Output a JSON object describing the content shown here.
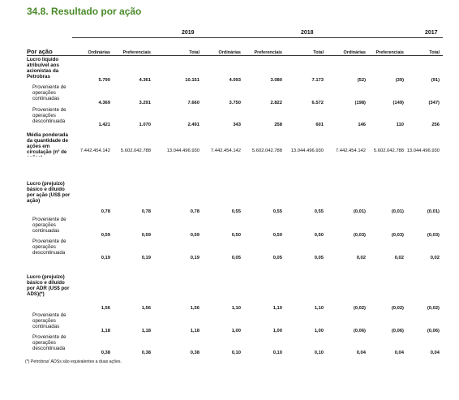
{
  "title": "34.8. Resultado por ação",
  "years": [
    "2019",
    "2018",
    "2017"
  ],
  "row_header": "Por ação",
  "col_headers": [
    "Ordinárias",
    "Preferenciais",
    "Total",
    "Ordinárias",
    "Preferenciais",
    "Total",
    "Ordinárias",
    "Preferenciais",
    "Total"
  ],
  "rows": [
    {
      "label": "Lucro líquido atribuível aos acionistas da Petrobras",
      "type": "main",
      "values": [
        "5.790",
        "4.361",
        "10.151",
        "4.093",
        "3.080",
        "7.173",
        "(52)",
        "(39)",
        "(91)"
      ]
    },
    {
      "label": "Proveniente de operações continuadas",
      "type": "sub",
      "values": [
        "4.369",
        "3.291",
        "7.660",
        "3.750",
        "2.822",
        "6.572",
        "(198)",
        "(149)",
        "(347)"
      ]
    },
    {
      "label": "Proveniente de operações descontinuada",
      "type": "sub",
      "values": [
        "1.421",
        "1.070",
        "2.491",
        "343",
        "258",
        "601",
        "146",
        "110",
        "256"
      ]
    },
    {
      "label": "Média ponderada da quantidade de ações em circulação (nº de ações)",
      "type": "main",
      "values": [
        "7.442.454.142",
        "5.602.042.788",
        "13.044.496.930",
        "7.442.454.142",
        "5.602.042.788",
        "13.044.496.930",
        "7.442.454.142",
        "5.602.042.788",
        "13.044.496.930"
      ]
    },
    {
      "label": "Lucro (prejuízo) básico e diluído por ação (US$ por ação)",
      "type": "main",
      "values": [
        "0,78",
        "0,78",
        "0,78",
        "0,55",
        "0,55",
        "0,55",
        "(0,01)",
        "(0,01)",
        "(0,01)"
      ]
    },
    {
      "label": "Proveniente de operações continuadas",
      "type": "sub",
      "values": [
        "0,59",
        "0,59",
        "0,59",
        "0,50",
        "0,50",
        "0,50",
        "(0,03)",
        "(0,03)",
        "(0,03)"
      ]
    },
    {
      "label": "Proveniente de operações descontinuada",
      "type": "sub",
      "values": [
        "0,19",
        "0,19",
        "0,19",
        "0,05",
        "0,05",
        "0,05",
        "0,02",
        "0,02",
        "0,02"
      ]
    },
    {
      "label": "Lucro (prejuízo) básico e diluído por ADR (US$ por ADS)(*)",
      "type": "main",
      "values": [
        "1,56",
        "1,56",
        "1,56",
        "1,10",
        "1,10",
        "1,10",
        "(0,02)",
        "(0,02)",
        "(0,02)"
      ]
    },
    {
      "label": "Proveniente de operações continuadas",
      "type": "sub",
      "values": [
        "1,18",
        "1,18",
        "1,18",
        "1,00",
        "1,00",
        "1,00",
        "(0,06)",
        "(0,06)",
        "(0,06)"
      ]
    },
    {
      "label": "Proveniente de operações descontinuada",
      "type": "sub",
      "values": [
        "0,38",
        "0,38",
        "0,38",
        "0,10",
        "0,10",
        "0,10",
        "0,04",
        "0,04",
        "0,04"
      ]
    }
  ],
  "footnote": "(*) Petrobras' ADSs são equivalentes a duas ações."
}
